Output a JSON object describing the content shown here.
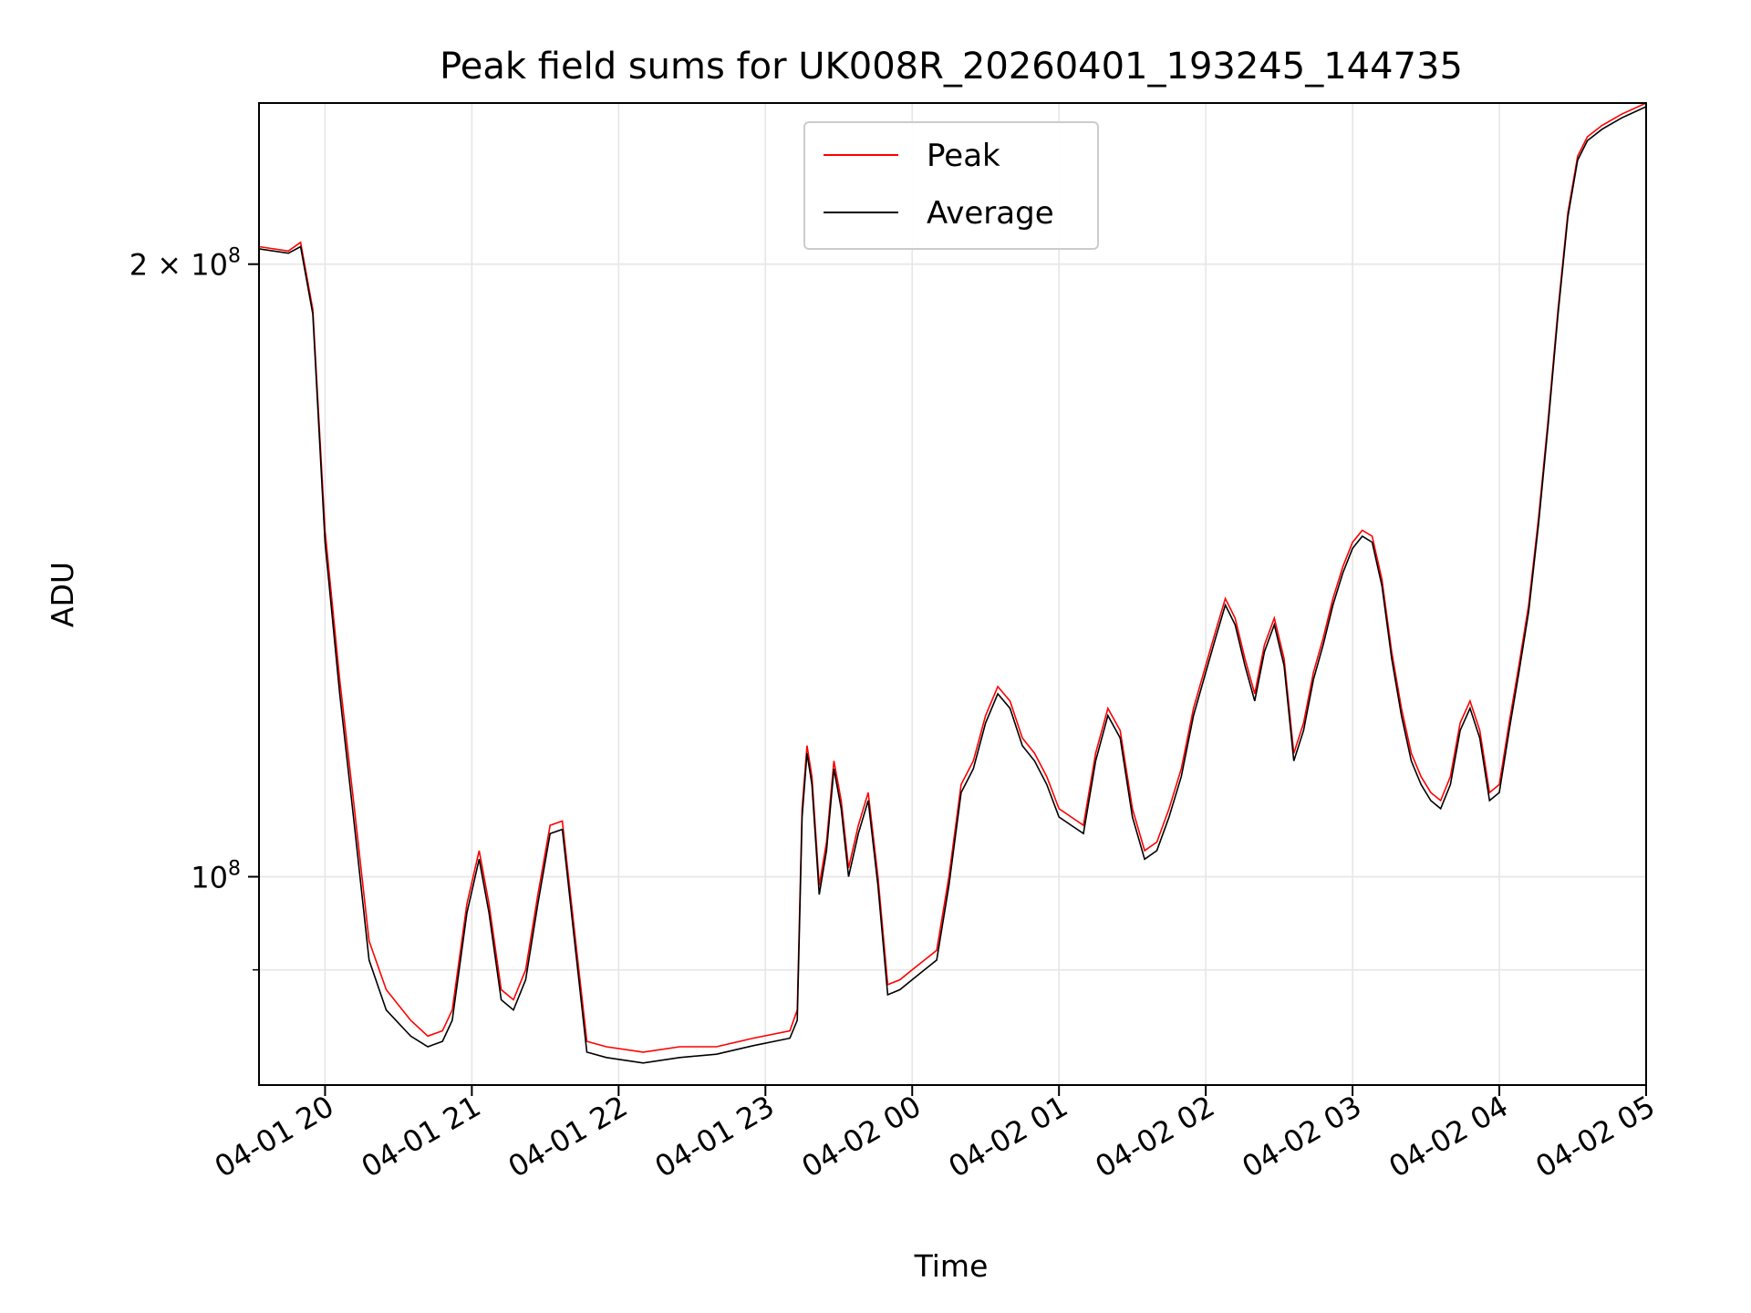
{
  "chart_data": {
    "type": "line",
    "title": "Peak field sums for UK008R_20260401_193245_144735",
    "xlabel": "Time",
    "ylabel": "ADU",
    "y_scale": "log",
    "ylim": [
      79000000,
      240000000
    ],
    "xlim": [
      "2026-04-01 19:33",
      "2026-04-02 05:00"
    ],
    "grid": true,
    "legend_position": "upper-center",
    "x_ticks": [
      {
        "t": "2026-04-01 20:00",
        "label": "04-01 20"
      },
      {
        "t": "2026-04-01 21:00",
        "label": "04-01 21"
      },
      {
        "t": "2026-04-01 22:00",
        "label": "04-01 22"
      },
      {
        "t": "2026-04-01 23:00",
        "label": "04-01 23"
      },
      {
        "t": "2026-04-02 00:00",
        "label": "04-02 00"
      },
      {
        "t": "2026-04-02 01:00",
        "label": "04-02 01"
      },
      {
        "t": "2026-04-02 02:00",
        "label": "04-02 02"
      },
      {
        "t": "2026-04-02 03:00",
        "label": "04-02 03"
      },
      {
        "t": "2026-04-02 04:00",
        "label": "04-02 04"
      },
      {
        "t": "2026-04-02 05:00",
        "label": "04-02 05"
      }
    ],
    "y_ticks": [
      {
        "value": 100000000,
        "base": "10",
        "exp": "8",
        "coef": ""
      },
      {
        "value": 200000000,
        "base": "10",
        "exp": "8",
        "coef": "2 × "
      }
    ],
    "y_minor_ticks": [
      90000000
    ],
    "series": [
      {
        "name": "Peak",
        "color": "#ff0000",
        "points": [
          [
            "2026-04-01 19:33",
            204000000
          ],
          [
            "2026-04-01 19:45",
            203000000
          ],
          [
            "2026-04-01 19:50",
            205000000
          ],
          [
            "2026-04-01 19:55",
            190000000
          ],
          [
            "2026-04-01 20:00",
            148000000
          ],
          [
            "2026-04-01 20:06",
            125000000
          ],
          [
            "2026-04-01 20:12",
            108000000
          ],
          [
            "2026-04-01 20:18",
            93000000
          ],
          [
            "2026-04-01 20:25",
            88000000
          ],
          [
            "2026-04-01 20:35",
            85000000
          ],
          [
            "2026-04-01 20:42",
            83500000
          ],
          [
            "2026-04-01 20:48",
            84000000
          ],
          [
            "2026-04-01 20:52",
            86000000
          ],
          [
            "2026-04-01 20:58",
            97000000
          ],
          [
            "2026-04-01 21:03",
            103000000
          ],
          [
            "2026-04-01 21:07",
            97000000
          ],
          [
            "2026-04-01 21:12",
            88000000
          ],
          [
            "2026-04-01 21:17",
            87000000
          ],
          [
            "2026-04-01 21:22",
            90000000
          ],
          [
            "2026-04-01 21:27",
            98000000
          ],
          [
            "2026-04-01 21:32",
            106000000
          ],
          [
            "2026-04-01 21:37",
            106500000
          ],
          [
            "2026-04-01 21:42",
            94000000
          ],
          [
            "2026-04-01 21:47",
            83000000
          ],
          [
            "2026-04-01 21:55",
            82500000
          ],
          [
            "2026-04-01 22:10",
            82000000
          ],
          [
            "2026-04-01 22:25",
            82500000
          ],
          [
            "2026-04-01 22:40",
            82500000
          ],
          [
            "2026-04-01 22:55",
            83300000
          ],
          [
            "2026-04-01 23:10",
            84000000
          ],
          [
            "2026-04-01 23:13",
            86000000
          ],
          [
            "2026-04-01 23:15",
            108000000
          ],
          [
            "2026-04-01 23:17",
            116000000
          ],
          [
            "2026-04-01 23:19",
            112000000
          ],
          [
            "2026-04-01 23:22",
            99000000
          ],
          [
            "2026-04-01 23:25",
            104000000
          ],
          [
            "2026-04-01 23:28",
            114000000
          ],
          [
            "2026-04-01 23:31",
            109000000
          ],
          [
            "2026-04-01 23:34",
            101000000
          ],
          [
            "2026-04-01 23:38",
            106000000
          ],
          [
            "2026-04-01 23:42",
            110000000
          ],
          [
            "2026-04-01 23:46",
            100000000
          ],
          [
            "2026-04-01 23:50",
            88500000
          ],
          [
            "2026-04-01 23:55",
            89000000
          ],
          [
            "2026-04-02 00:00",
            90000000
          ],
          [
            "2026-04-02 00:05",
            91000000
          ],
          [
            "2026-04-02 00:10",
            92000000
          ],
          [
            "2026-04-02 00:15",
            100000000
          ],
          [
            "2026-04-02 00:20",
            111000000
          ],
          [
            "2026-04-02 00:25",
            114000000
          ],
          [
            "2026-04-02 00:30",
            120000000
          ],
          [
            "2026-04-02 00:35",
            124000000
          ],
          [
            "2026-04-02 00:40",
            122000000
          ],
          [
            "2026-04-02 00:45",
            117000000
          ],
          [
            "2026-04-02 00:50",
            115000000
          ],
          [
            "2026-04-02 00:55",
            112000000
          ],
          [
            "2026-04-02 01:00",
            108000000
          ],
          [
            "2026-04-02 01:05",
            107000000
          ],
          [
            "2026-04-02 01:10",
            106000000
          ],
          [
            "2026-04-02 01:15",
            115000000
          ],
          [
            "2026-04-02 01:20",
            121000000
          ],
          [
            "2026-04-02 01:25",
            118000000
          ],
          [
            "2026-04-02 01:30",
            108000000
          ],
          [
            "2026-04-02 01:35",
            103000000
          ],
          [
            "2026-04-02 01:40",
            104000000
          ],
          [
            "2026-04-02 01:45",
            108000000
          ],
          [
            "2026-04-02 01:50",
            113000000
          ],
          [
            "2026-04-02 01:55",
            121000000
          ],
          [
            "2026-04-02 02:00",
            127000000
          ],
          [
            "2026-04-02 02:04",
            132000000
          ],
          [
            "2026-04-02 02:08",
            137000000
          ],
          [
            "2026-04-02 02:12",
            134000000
          ],
          [
            "2026-04-02 02:16",
            128000000
          ],
          [
            "2026-04-02 02:20",
            123000000
          ],
          [
            "2026-04-02 02:24",
            130000000
          ],
          [
            "2026-04-02 02:28",
            134000000
          ],
          [
            "2026-04-02 02:32",
            128000000
          ],
          [
            "2026-04-02 02:36",
            115000000
          ],
          [
            "2026-04-02 02:40",
            119000000
          ],
          [
            "2026-04-02 02:44",
            126000000
          ],
          [
            "2026-04-02 02:48",
            131000000
          ],
          [
            "2026-04-02 02:52",
            137000000
          ],
          [
            "2026-04-02 02:56",
            142000000
          ],
          [
            "2026-04-02 03:00",
            146000000
          ],
          [
            "2026-04-02 03:04",
            148000000
          ],
          [
            "2026-04-02 03:08",
            147000000
          ],
          [
            "2026-04-02 03:12",
            140000000
          ],
          [
            "2026-04-02 03:16",
            129000000
          ],
          [
            "2026-04-02 03:20",
            121000000
          ],
          [
            "2026-04-02 03:24",
            115000000
          ],
          [
            "2026-04-02 03:28",
            112000000
          ],
          [
            "2026-04-02 03:32",
            110000000
          ],
          [
            "2026-04-02 03:36",
            109000000
          ],
          [
            "2026-04-02 03:40",
            112000000
          ],
          [
            "2026-04-02 03:44",
            119000000
          ],
          [
            "2026-04-02 03:48",
            122000000
          ],
          [
            "2026-04-02 03:52",
            118000000
          ],
          [
            "2026-04-02 03:56",
            110000000
          ],
          [
            "2026-04-02 04:00",
            111000000
          ],
          [
            "2026-04-02 04:04",
            119000000
          ],
          [
            "2026-04-02 04:08",
            127000000
          ],
          [
            "2026-04-02 04:12",
            136000000
          ],
          [
            "2026-04-02 04:16",
            150000000
          ],
          [
            "2026-04-02 04:20",
            168000000
          ],
          [
            "2026-04-02 04:24",
            190000000
          ],
          [
            "2026-04-02 04:28",
            212000000
          ],
          [
            "2026-04-02 04:32",
            226000000
          ],
          [
            "2026-04-02 04:36",
            231000000
          ],
          [
            "2026-04-02 04:42",
            234000000
          ],
          [
            "2026-04-02 04:50",
            237000000
          ],
          [
            "2026-04-02 05:00",
            240000000
          ]
        ]
      },
      {
        "name": "Average",
        "color": "#000000",
        "points": [
          [
            "2026-04-01 19:33",
            203500000
          ],
          [
            "2026-04-01 19:45",
            202500000
          ],
          [
            "2026-04-01 19:50",
            204000000
          ],
          [
            "2026-04-01 19:55",
            189000000
          ],
          [
            "2026-04-01 20:00",
            146000000
          ],
          [
            "2026-04-01 20:06",
            123000000
          ],
          [
            "2026-04-01 20:12",
            106000000
          ],
          [
            "2026-04-01 20:18",
            91000000
          ],
          [
            "2026-04-01 20:25",
            86000000
          ],
          [
            "2026-04-01 20:35",
            83500000
          ],
          [
            "2026-04-01 20:42",
            82500000
          ],
          [
            "2026-04-01 20:48",
            83000000
          ],
          [
            "2026-04-01 20:52",
            85000000
          ],
          [
            "2026-04-01 20:58",
            96000000
          ],
          [
            "2026-04-01 21:03",
            102000000
          ],
          [
            "2026-04-01 21:07",
            96000000
          ],
          [
            "2026-04-01 21:12",
            87000000
          ],
          [
            "2026-04-01 21:17",
            86000000
          ],
          [
            "2026-04-01 21:22",
            89000000
          ],
          [
            "2026-04-01 21:27",
            97000000
          ],
          [
            "2026-04-01 21:32",
            105000000
          ],
          [
            "2026-04-01 21:37",
            105500000
          ],
          [
            "2026-04-01 21:42",
            93000000
          ],
          [
            "2026-04-01 21:47",
            82000000
          ],
          [
            "2026-04-01 21:55",
            81500000
          ],
          [
            "2026-04-01 22:10",
            81000000
          ],
          [
            "2026-04-01 22:25",
            81500000
          ],
          [
            "2026-04-01 22:40",
            81800000
          ],
          [
            "2026-04-01 22:55",
            82600000
          ],
          [
            "2026-04-01 23:10",
            83300000
          ],
          [
            "2026-04-01 23:13",
            85000000
          ],
          [
            "2026-04-01 23:15",
            107000000
          ],
          [
            "2026-04-01 23:17",
            115000000
          ],
          [
            "2026-04-01 23:19",
            111000000
          ],
          [
            "2026-04-01 23:22",
            98000000
          ],
          [
            "2026-04-01 23:25",
            103000000
          ],
          [
            "2026-04-01 23:28",
            113000000
          ],
          [
            "2026-04-01 23:31",
            108000000
          ],
          [
            "2026-04-01 23:34",
            100000000
          ],
          [
            "2026-04-01 23:38",
            105000000
          ],
          [
            "2026-04-01 23:42",
            109000000
          ],
          [
            "2026-04-01 23:46",
            99000000
          ],
          [
            "2026-04-01 23:50",
            87500000
          ],
          [
            "2026-04-01 23:55",
            88000000
          ],
          [
            "2026-04-02 00:00",
            89000000
          ],
          [
            "2026-04-02 00:05",
            90000000
          ],
          [
            "2026-04-02 00:10",
            91000000
          ],
          [
            "2026-04-02 00:15",
            99000000
          ],
          [
            "2026-04-02 00:20",
            110000000
          ],
          [
            "2026-04-02 00:25",
            113000000
          ],
          [
            "2026-04-02 00:30",
            119000000
          ],
          [
            "2026-04-02 00:35",
            123000000
          ],
          [
            "2026-04-02 00:40",
            121000000
          ],
          [
            "2026-04-02 00:45",
            116000000
          ],
          [
            "2026-04-02 00:50",
            114000000
          ],
          [
            "2026-04-02 00:55",
            111000000
          ],
          [
            "2026-04-02 01:00",
            107000000
          ],
          [
            "2026-04-02 01:05",
            106000000
          ],
          [
            "2026-04-02 01:10",
            105000000
          ],
          [
            "2026-04-02 01:15",
            114000000
          ],
          [
            "2026-04-02 01:20",
            120000000
          ],
          [
            "2026-04-02 01:25",
            117000000
          ],
          [
            "2026-04-02 01:30",
            107000000
          ],
          [
            "2026-04-02 01:35",
            102000000
          ],
          [
            "2026-04-02 01:40",
            103000000
          ],
          [
            "2026-04-02 01:45",
            107000000
          ],
          [
            "2026-04-02 01:50",
            112000000
          ],
          [
            "2026-04-02 01:55",
            120000000
          ],
          [
            "2026-04-02 02:00",
            126000000
          ],
          [
            "2026-04-02 02:04",
            131000000
          ],
          [
            "2026-04-02 02:08",
            136000000
          ],
          [
            "2026-04-02 02:12",
            133000000
          ],
          [
            "2026-04-02 02:16",
            127000000
          ],
          [
            "2026-04-02 02:20",
            122000000
          ],
          [
            "2026-04-02 02:24",
            129000000
          ],
          [
            "2026-04-02 02:28",
            133000000
          ],
          [
            "2026-04-02 02:32",
            127000000
          ],
          [
            "2026-04-02 02:36",
            114000000
          ],
          [
            "2026-04-02 02:40",
            118000000
          ],
          [
            "2026-04-02 02:44",
            125000000
          ],
          [
            "2026-04-02 02:48",
            130000000
          ],
          [
            "2026-04-02 02:52",
            136000000
          ],
          [
            "2026-04-02 02:56",
            141000000
          ],
          [
            "2026-04-02 03:00",
            145000000
          ],
          [
            "2026-04-02 03:04",
            147000000
          ],
          [
            "2026-04-02 03:08",
            146000000
          ],
          [
            "2026-04-02 03:12",
            139000000
          ],
          [
            "2026-04-02 03:16",
            128000000
          ],
          [
            "2026-04-02 03:20",
            120000000
          ],
          [
            "2026-04-02 03:24",
            114000000
          ],
          [
            "2026-04-02 03:28",
            111000000
          ],
          [
            "2026-04-02 03:32",
            109000000
          ],
          [
            "2026-04-02 03:36",
            108000000
          ],
          [
            "2026-04-02 03:40",
            111000000
          ],
          [
            "2026-04-02 03:44",
            118000000
          ],
          [
            "2026-04-02 03:48",
            121000000
          ],
          [
            "2026-04-02 03:52",
            117000000
          ],
          [
            "2026-04-02 03:56",
            109000000
          ],
          [
            "2026-04-02 04:00",
            110000000
          ],
          [
            "2026-04-02 04:04",
            118000000
          ],
          [
            "2026-04-02 04:08",
            126000000
          ],
          [
            "2026-04-02 04:12",
            135000000
          ],
          [
            "2026-04-02 04:16",
            149000000
          ],
          [
            "2026-04-02 04:20",
            167000000
          ],
          [
            "2026-04-02 04:24",
            189000000
          ],
          [
            "2026-04-02 04:28",
            211000000
          ],
          [
            "2026-04-02 04:32",
            225000000
          ],
          [
            "2026-04-02 04:36",
            230000000
          ],
          [
            "2026-04-02 04:42",
            233000000
          ],
          [
            "2026-04-02 04:50",
            236000000
          ],
          [
            "2026-04-02 05:00",
            239000000
          ]
        ]
      }
    ]
  }
}
